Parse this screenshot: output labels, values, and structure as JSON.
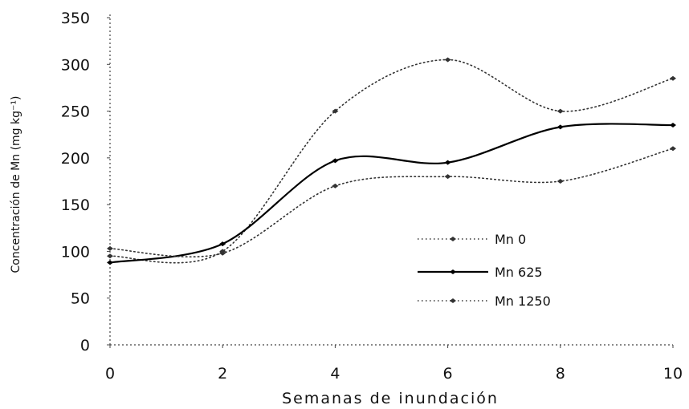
{
  "chart_data": {
    "type": "line",
    "xlabel": "Semanas de inundación",
    "ylabel": "Concentración de Mn (mg kg⁻¹)",
    "x": [
      0,
      2,
      4,
      6,
      8,
      10
    ],
    "xlim": [
      0,
      10
    ],
    "ylim": [
      0,
      350
    ],
    "yticks": [
      0,
      50,
      100,
      150,
      200,
      250,
      300,
      350
    ],
    "xticks": [
      0,
      2,
      4,
      6,
      8,
      10
    ],
    "grid": false,
    "legend_position": "right",
    "series": [
      {
        "name": "Mn 0",
        "values": [
          95,
          100,
          250,
          305,
          250,
          285
        ],
        "style": "dotted",
        "color": "#333333"
      },
      {
        "name": "Mn 625",
        "values": [
          88,
          108,
          197,
          195,
          233,
          235
        ],
        "style": "solid",
        "color": "#000000"
      },
      {
        "name": "Mn 1250",
        "values": [
          103,
          98,
          170,
          180,
          175,
          210
        ],
        "style": "dotted",
        "color": "#333333"
      }
    ]
  }
}
